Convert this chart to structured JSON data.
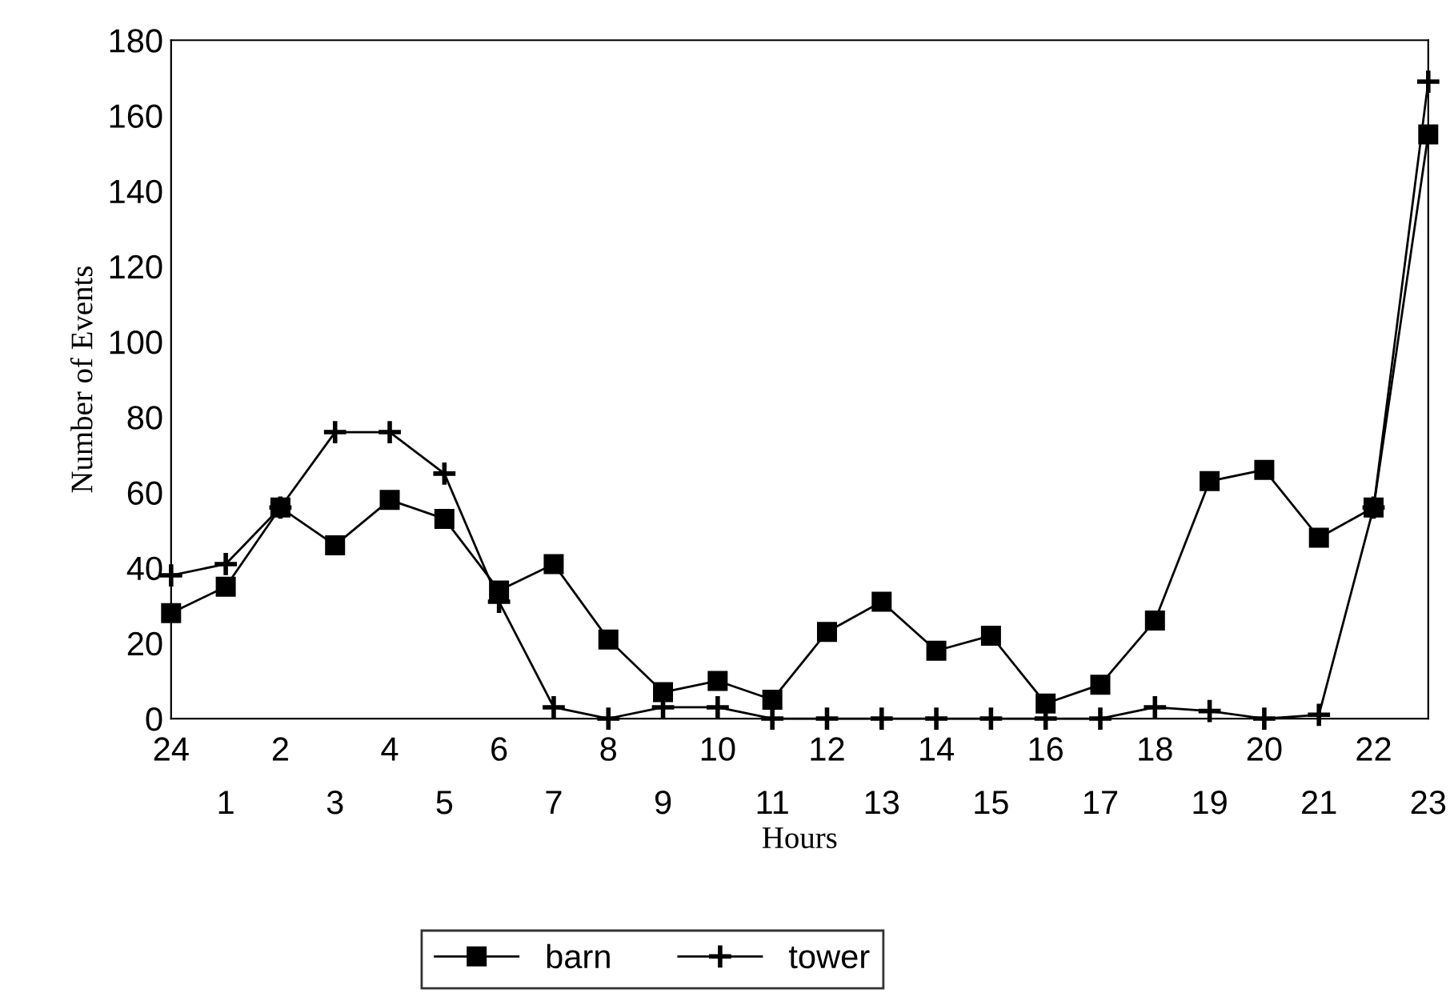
{
  "chart_data": {
    "type": "line",
    "xlabel": "Hours",
    "ylabel": "Number of Events",
    "categories": [
      "24",
      "1",
      "2",
      "3",
      "4",
      "5",
      "6",
      "7",
      "8",
      "9",
      "10",
      "11",
      "12",
      "13",
      "14",
      "15",
      "16",
      "17",
      "18",
      "19",
      "20",
      "21",
      "22",
      "23"
    ],
    "series": [
      {
        "name": "barn",
        "color": "#000000",
        "marker": "square",
        "values": [
          28,
          35,
          56,
          46,
          58,
          53,
          34,
          41,
          21,
          7,
          10,
          5,
          23,
          31,
          18,
          22,
          4,
          9,
          26,
          63,
          66,
          48,
          56,
          155
        ]
      },
      {
        "name": "tower",
        "color": "#000000",
        "marker": "cross",
        "values": [
          38,
          41,
          56,
          76,
          76,
          65,
          31,
          3,
          0,
          3,
          3,
          0,
          0,
          0,
          0,
          0,
          0,
          0,
          3,
          2,
          0,
          1,
          56,
          169
        ]
      }
    ],
    "ylim": [
      0,
      180
    ],
    "yticks": [
      0,
      20,
      40,
      60,
      80,
      100,
      120,
      140,
      160,
      180
    ],
    "grid": false,
    "legend": "bottom",
    "line_style": "solid"
  }
}
